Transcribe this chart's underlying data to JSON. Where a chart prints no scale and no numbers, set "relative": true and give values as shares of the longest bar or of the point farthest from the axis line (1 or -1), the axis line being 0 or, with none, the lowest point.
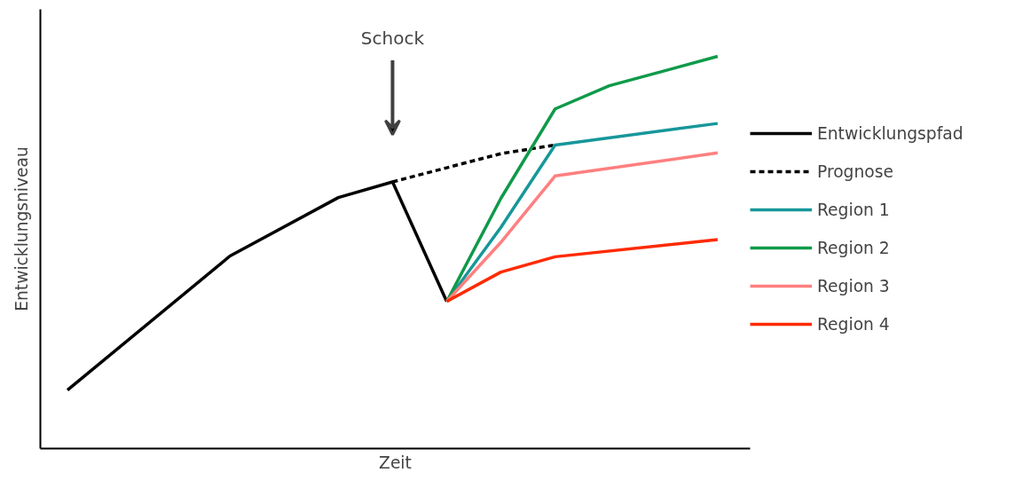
{
  "chart_data": {
    "type": "line",
    "relative": true,
    "xlabel": "Zeit",
    "ylabel": "Entwicklungsniveau",
    "categories": [
      null,
      null,
      null,
      null,
      null,
      null,
      null,
      null,
      null,
      null,
      null,
      null,
      null
    ],
    "series": [
      {
        "name": "Entwicklungspfad",
        "color": "#000000",
        "line_style": "solid",
        "values": [
          0.149,
          null,
          null,
          0.491,
          null,
          0.64,
          0.68,
          0.375,
          null,
          null,
          null,
          null,
          null
        ]
      },
      {
        "name": "Prognose",
        "color": "#000000",
        "line_style": "dashed",
        "values": [
          null,
          null,
          null,
          null,
          null,
          null,
          0.68,
          null,
          0.752,
          0.774,
          null,
          null,
          null
        ]
      },
      {
        "name": "Region 1",
        "color": "#17979a",
        "line_style": "solid",
        "values": [
          null,
          null,
          null,
          null,
          null,
          null,
          null,
          0.375,
          0.564,
          0.774,
          null,
          null,
          0.829
        ]
      },
      {
        "name": "Region 2",
        "color": "#0f9a4a",
        "line_style": "solid",
        "values": [
          null,
          null,
          null,
          null,
          null,
          null,
          null,
          0.375,
          0.638,
          0.866,
          0.925,
          null,
          1
        ]
      },
      {
        "name": "Region 3",
        "color": "#ff7f7f",
        "line_style": "solid",
        "values": [
          null,
          null,
          null,
          null,
          null,
          null,
          null,
          0.375,
          0.526,
          0.695,
          null,
          null,
          0.754
        ]
      },
      {
        "name": "Region 4",
        "color": "#ff2a00",
        "line_style": "solid",
        "values": [
          null,
          null,
          null,
          null,
          null,
          null,
          null,
          0.375,
          0.45,
          0.489,
          null,
          null,
          0.533
        ]
      }
    ],
    "annotations": [
      "Schock"
    ],
    "legend": "right",
    "marker": "none"
  }
}
